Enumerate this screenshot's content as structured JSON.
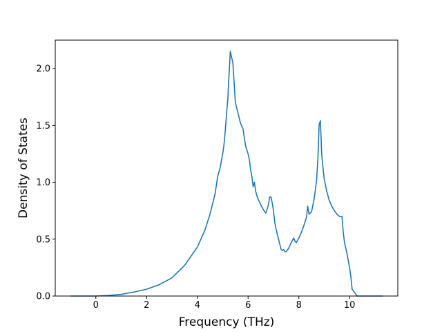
{
  "chart_data": {
    "type": "line",
    "xlabel": "Frequency (THz)",
    "ylabel": "Density of States",
    "xlim": [
      -1.6,
      11.9
    ],
    "ylim": [
      0.0,
      2.25
    ],
    "xticks": [
      0,
      2,
      4,
      6,
      8,
      10
    ],
    "xtick_labels": [
      "0",
      "2",
      "4",
      "6",
      "8",
      "10"
    ],
    "yticks": [
      0.0,
      0.5,
      1.0,
      1.5,
      2.0
    ],
    "ytick_labels": [
      "0.0",
      "0.5",
      "1.0",
      "1.5",
      "2.0"
    ],
    "grid": false,
    "line_color": "#1f77b4",
    "series": [
      {
        "x": [
          -1.0,
          0.0,
          0.5,
          1.0,
          1.5,
          2.0,
          2.5,
          3.0,
          3.5,
          4.0,
          4.3,
          4.5,
          4.7,
          4.8,
          4.9,
          5.0,
          5.05,
          5.1,
          5.15,
          5.2,
          5.25,
          5.3,
          5.4,
          5.5,
          5.6,
          5.7,
          5.8,
          5.9,
          6.0,
          6.05,
          6.1,
          6.15,
          6.2,
          6.25,
          6.3,
          6.35,
          6.4,
          6.5,
          6.6,
          6.7,
          6.8,
          6.85,
          6.9,
          6.95,
          7.0,
          7.05,
          7.1,
          7.2,
          7.3,
          7.35,
          7.4,
          7.45,
          7.5,
          7.6,
          7.7,
          7.8,
          7.85,
          7.9,
          8.0,
          8.1,
          8.2,
          8.3,
          8.35,
          8.4,
          8.45,
          8.5,
          8.6,
          8.65,
          8.7,
          8.75,
          8.8,
          8.85,
          8.9,
          8.95,
          9.0,
          9.1,
          9.2,
          9.3,
          9.4,
          9.5,
          9.6,
          9.7,
          9.75,
          9.8,
          9.9,
          10.0,
          10.05,
          10.1,
          10.2,
          10.3,
          10.6,
          11.0,
          11.3
        ],
        "y": [
          0.0,
          0.0,
          0.005,
          0.015,
          0.035,
          0.06,
          0.1,
          0.16,
          0.27,
          0.43,
          0.58,
          0.72,
          0.9,
          1.05,
          1.13,
          1.25,
          1.33,
          1.45,
          1.6,
          1.73,
          1.95,
          2.15,
          2.05,
          1.7,
          1.61,
          1.52,
          1.47,
          1.32,
          1.25,
          1.2,
          1.11,
          1.05,
          0.96,
          1.0,
          0.92,
          0.88,
          0.85,
          0.8,
          0.76,
          0.73,
          0.8,
          0.87,
          0.87,
          0.82,
          0.75,
          0.65,
          0.59,
          0.5,
          0.41,
          0.4,
          0.41,
          0.39,
          0.39,
          0.42,
          0.47,
          0.51,
          0.48,
          0.47,
          0.51,
          0.56,
          0.62,
          0.69,
          0.79,
          0.72,
          0.73,
          0.74,
          0.85,
          0.93,
          1.02,
          1.2,
          1.51,
          1.54,
          1.25,
          1.13,
          1.03,
          0.92,
          0.84,
          0.79,
          0.75,
          0.72,
          0.7,
          0.7,
          0.56,
          0.47,
          0.37,
          0.25,
          0.17,
          0.06,
          0.03,
          0.0,
          0.0,
          0.0,
          0.0
        ]
      }
    ]
  }
}
